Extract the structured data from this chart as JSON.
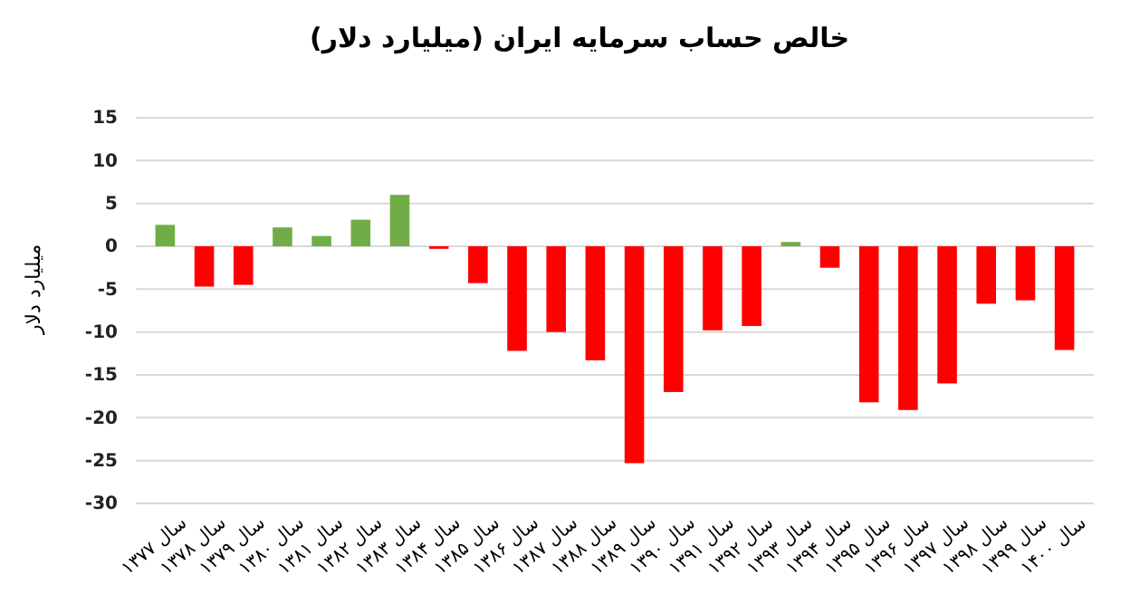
{
  "chart_data": {
    "type": "bar",
    "title": "خالص حساب سرمایه ایران (میلیارد دلار)",
    "ylabel": "میلیارد دلار",
    "categories": [
      "سال ۱۳۷۷",
      "سال ۱۳۷۸",
      "سال ۱۳۷۹",
      "سال ۱۳۸۰",
      "سال ۱۳۸۱",
      "سال ۱۳۸۲",
      "سال ۱۳۸۳",
      "سال ۱۳۸۴",
      "سال ۱۳۸۵",
      "سال ۱۳۸۶",
      "سال ۱۳۸۷",
      "سال ۱۳۸۸",
      "سال ۱۳۸۹",
      "سال ۱۳۹۰",
      "سال ۱۳۹۱",
      "سال ۱۳۹۲",
      "سال ۱۳۹۳",
      "سال ۱۳۹۴",
      "سال ۱۳۹۵",
      "سال ۱۳۹۶",
      "سال ۱۳۹۷",
      "سال ۱۳۹۸",
      "سال ۱۳۹۹",
      "سال ۱۴۰۰"
    ],
    "values": [
      2.5,
      -4.7,
      -4.5,
      2.2,
      1.2,
      3.1,
      6,
      -0.3,
      -4.3,
      -12.2,
      -10,
      -13.3,
      -25.3,
      -17,
      -9.8,
      -9.3,
      0.5,
      -2.5,
      -18.2,
      -19.1,
      -16,
      -6.7,
      -6.3,
      -12.1
    ],
    "colors": [
      "#70ad47",
      "#ff0000",
      "#ff0000",
      "#70ad47",
      "#70ad47",
      "#70ad47",
      "#70ad47",
      "#ff0000",
      "#ff0000",
      "#ff0000",
      "#ff0000",
      "#ff0000",
      "#ff0000",
      "#ff0000",
      "#ff0000",
      "#ff0000",
      "#70ad47",
      "#ff0000",
      "#ff0000",
      "#ff0000",
      "#ff0000",
      "#ff0000",
      "#ff0000",
      "#ff0000"
    ],
    "ylim": [
      -30,
      15
    ],
    "yticks": [
      -30,
      -25,
      -20,
      -15,
      -10,
      -5,
      0,
      5,
      10,
      15
    ],
    "grid": "y"
  }
}
